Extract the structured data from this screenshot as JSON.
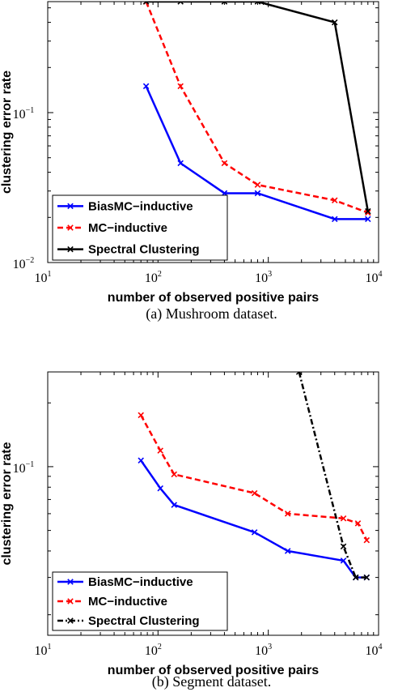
{
  "chart_data": [
    {
      "type": "line",
      "caption": "(a)  Mushroom dataset.",
      "xlabel": "number of observed positive pairs",
      "ylabel": "clustering error rate",
      "xscale": "log",
      "yscale": "log",
      "xlim": [
        10,
        10000
      ],
      "ylim": [
        0.01,
        0.55
      ],
      "xticks": [
        {
          "label": "10",
          "exp": "1"
        },
        {
          "label": "10",
          "exp": "2"
        },
        {
          "label": "10",
          "exp": "3"
        },
        {
          "label": "10",
          "exp": "4"
        }
      ],
      "yticks": [
        {
          "value": 0.01,
          "label": "10",
          "exp": "−2"
        },
        {
          "value": 0.1,
          "label": "10",
          "exp": "−1"
        }
      ],
      "legend": "bottom-left",
      "series": [
        {
          "name": "BiasMC−inductive",
          "color": "#0000ff",
          "dash": "",
          "marker": "x",
          "x": [
            78,
            160,
            400,
            800,
            4000,
            8000
          ],
          "y": [
            0.15,
            0.046,
            0.029,
            0.029,
            0.0195,
            0.0195
          ]
        },
        {
          "name": "MC−inductive",
          "color": "#ff0000",
          "dash": "7,4",
          "marker": "x",
          "x": [
            78,
            160,
            400,
            800,
            4000,
            8000
          ],
          "y": [
            0.55,
            0.15,
            0.046,
            0.033,
            0.026,
            0.0215
          ]
        },
        {
          "name": "Spectral Clustering",
          "color": "#000000",
          "dash": "",
          "marker": "x",
          "x": [
            78,
            160,
            400,
            800,
            4000,
            8000
          ],
          "y": [
            0.55,
            0.55,
            0.55,
            0.55,
            0.4,
            0.022
          ]
        }
      ]
    },
    {
      "type": "line",
      "caption": "(b)  Segment dataset.",
      "xlabel": "number of observed positive pairs",
      "ylabel": "clustering error rate",
      "xscale": "log",
      "yscale": "log",
      "xlim": [
        10,
        10000
      ],
      "ylim": [
        0.016,
        0.28
      ],
      "xticks": [
        {
          "label": "10",
          "exp": "1"
        },
        {
          "label": "10",
          "exp": "2"
        },
        {
          "label": "10",
          "exp": "3"
        },
        {
          "label": "10",
          "exp": "4"
        }
      ],
      "yticks": [
        {
          "value": 0.1,
          "label": "10",
          "exp": "−1"
        }
      ],
      "legend": "bottom-left",
      "series": [
        {
          "name": "BiasMC−inductive",
          "color": "#0000ff",
          "dash": "",
          "marker": "x",
          "x": [
            70,
            105,
            140,
            750,
            1500,
            4800,
            6200,
            7800
          ],
          "y": [
            0.107,
            0.079,
            0.066,
            0.049,
            0.04,
            0.036,
            0.03,
            0.03
          ]
        },
        {
          "name": "MC−inductive",
          "color": "#ff0000",
          "dash": "7,4",
          "marker": "x",
          "x": [
            70,
            105,
            140,
            750,
            1500,
            4800,
            6500,
            7800
          ],
          "y": [
            0.175,
            0.119,
            0.092,
            0.075,
            0.06,
            0.057,
            0.054,
            0.045
          ]
        },
        {
          "name": "Spectral Clustering",
          "color": "#000000",
          "dash": "7,3,2,3",
          "marker": "x",
          "x": [
            1900,
            4800,
            6200,
            7800
          ],
          "y": [
            0.28,
            0.042,
            0.03,
            0.03
          ]
        }
      ]
    }
  ]
}
